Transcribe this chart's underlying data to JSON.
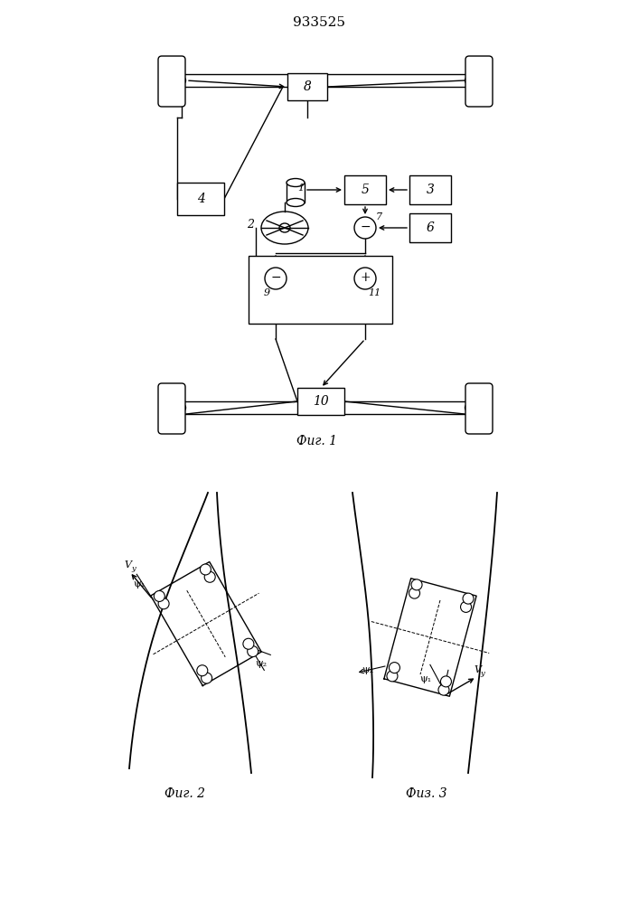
{
  "title": "933525",
  "fig1_label": "Фиг. 1",
  "fig2_label": "Фиг. 2",
  "fig3_label": "Физ. 3",
  "bg_color": "#ffffff",
  "line_color": "#000000",
  "fig_size": [
    7.07,
    10.0
  ],
  "dpi": 100
}
